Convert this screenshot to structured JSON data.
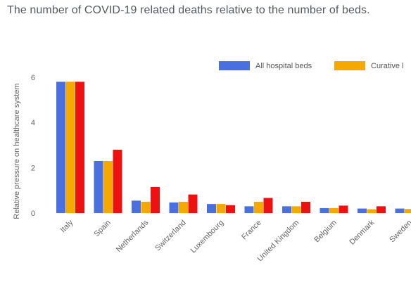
{
  "title": "The number of COVID-19 related deaths relative to the number of beds.",
  "chart_data": {
    "type": "bar",
    "title": "The number of COVID-19 related deaths relative to the number of beds.",
    "xlabel": "",
    "ylabel": "Relative pressure on healthcare system",
    "ylim": [
      0,
      6.6
    ],
    "yticks": [
      0,
      2,
      4,
      6
    ],
    "grid": false,
    "legend_position": "top-right",
    "categories": [
      "Italy",
      "Spain",
      "Netherlands",
      "Switzerland",
      "Luxembourg",
      "France",
      "United Kingdom",
      "Belgium",
      "Denmark",
      "Sweden"
    ],
    "series": [
      {
        "name": "All hospital beds",
        "color": "#4a6fe0",
        "values": [
          5.8,
          2.3,
          0.55,
          0.47,
          0.4,
          0.3,
          0.3,
          0.22,
          0.2,
          0.2
        ]
      },
      {
        "name": "Curative l",
        "color": "#f5a800",
        "values": [
          5.8,
          2.3,
          0.5,
          0.5,
          0.4,
          0.5,
          0.3,
          0.22,
          0.17,
          0.18
        ]
      },
      {
        "name": "",
        "color": "#ee1111",
        "values": [
          5.8,
          2.8,
          1.15,
          0.82,
          0.35,
          0.67,
          0.5,
          0.33,
          0.3,
          0.25
        ]
      }
    ]
  }
}
